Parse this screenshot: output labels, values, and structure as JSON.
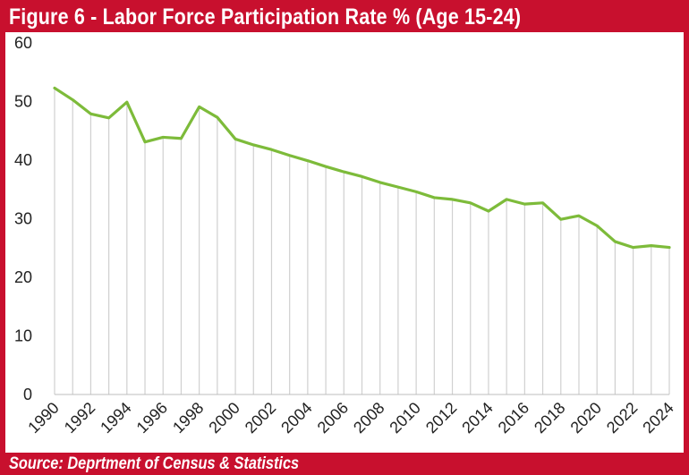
{
  "title": "Figure 6 - Labor Force Participation Rate % (Age 15-24)",
  "source": "Source: Deprtment of Census & Statistics",
  "colors": {
    "frame": "#c8102e",
    "line": "#7dbb3a",
    "drop_lines": "#d0d0d0",
    "panel": "#ffffff"
  },
  "chart_data": {
    "type": "line",
    "title": "Figure 6 - Labor Force Participation Rate % (Age 15-24)",
    "xlabel": "",
    "ylabel": "",
    "ylim": [
      0,
      60
    ],
    "yticks": [
      0,
      10,
      20,
      30,
      40,
      50,
      60
    ],
    "grid": false,
    "drop_lines": true,
    "x": [
      1990,
      1991,
      1992,
      1993,
      1994,
      1995,
      1996,
      1997,
      1998,
      1999,
      2000,
      2001,
      2002,
      2003,
      2004,
      2005,
      2006,
      2007,
      2008,
      2009,
      2010,
      2011,
      2012,
      2013,
      2014,
      2015,
      2016,
      2017,
      2018,
      2019,
      2020,
      2021,
      2022,
      2023,
      2024
    ],
    "x_tick_labels": [
      "1990",
      "1992",
      "1994",
      "1996",
      "1998",
      "2000",
      "2002",
      "2004",
      "2006",
      "2008",
      "2010",
      "2012",
      "2014",
      "2016",
      "2018",
      "2020",
      "2022",
      "2024"
    ],
    "series": [
      {
        "values": [
          52.3,
          50.3,
          47.9,
          47.2,
          49.9,
          43.1,
          43.9,
          43.7,
          49.1,
          47.3,
          43.6,
          42.6,
          41.8,
          40.8,
          39.9,
          38.9,
          38.0,
          37.2,
          36.2,
          35.4,
          34.6,
          33.6,
          33.3,
          32.7,
          31.3,
          33.3,
          32.5,
          32.7,
          29.9,
          30.5,
          28.8,
          26.1,
          25.1,
          25.4,
          25.1
        ]
      }
    ]
  }
}
